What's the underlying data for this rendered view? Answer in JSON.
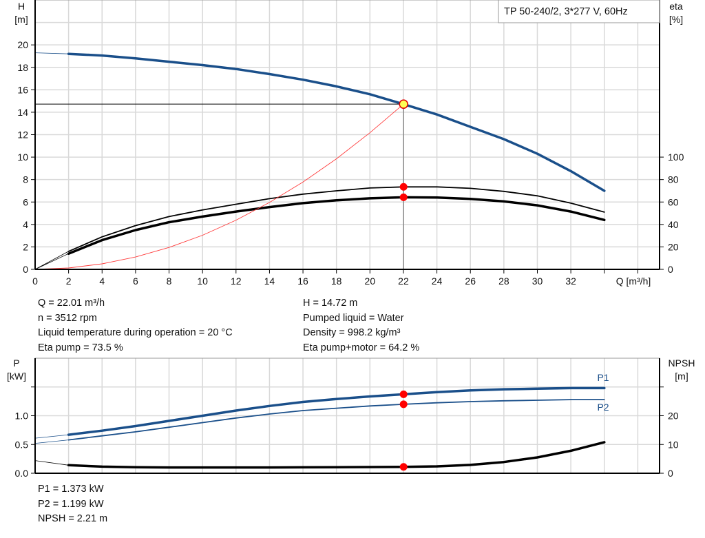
{
  "chart_data": [
    {
      "type": "line",
      "title": "TP 50-240/2, 3*277 V, 60Hz",
      "xlabel": "Q [m³/h]",
      "ylabel_left": "H\n[m]",
      "ylabel_right": "eta\n[%]",
      "xlim": [
        0,
        37.3
      ],
      "ylim_left": [
        0,
        24
      ],
      "ylim_right": [
        0,
        240
      ],
      "x_ticks": [
        0,
        2,
        4,
        6,
        8,
        10,
        12,
        14,
        16,
        18,
        20,
        22,
        24,
        26,
        28,
        30,
        32
      ],
      "y_ticks_left": [
        0,
        2,
        4,
        6,
        8,
        10,
        12,
        14,
        16,
        18,
        20
      ],
      "y_ticks_right": [
        0,
        20,
        40,
        60,
        80,
        100
      ],
      "grid": true,
      "extrapolated_range": [
        0,
        2
      ],
      "series": [
        {
          "id": "H",
          "axis": "left",
          "color": "#1a4f8a",
          "width": 3.5,
          "x": [
            0,
            2,
            4,
            6,
            8,
            10,
            12,
            14,
            16,
            18,
            20,
            22,
            24,
            26,
            28,
            30,
            32,
            34
          ],
          "y": [
            19.3,
            19.2,
            19.05,
            18.8,
            18.5,
            18.2,
            17.85,
            17.4,
            16.9,
            16.3,
            15.6,
            14.72,
            13.8,
            12.7,
            11.6,
            10.3,
            8.75,
            7.0
          ]
        },
        {
          "id": "eta_pump",
          "axis": "right",
          "color": "#000000",
          "width": 1.8,
          "x": [
            0,
            2,
            4,
            6,
            8,
            10,
            12,
            14,
            16,
            18,
            20,
            22,
            24,
            26,
            28,
            30,
            32,
            34
          ],
          "y": [
            0,
            16,
            29,
            39,
            47,
            53,
            58,
            63,
            67,
            70,
            72.5,
            73.5,
            73.5,
            72.2,
            69.5,
            65.5,
            59,
            51
          ]
        },
        {
          "id": "eta_pump_motor",
          "axis": "right",
          "color": "#000000",
          "width": 3.5,
          "x": [
            0,
            2,
            4,
            6,
            8,
            10,
            12,
            14,
            16,
            18,
            20,
            22,
            24,
            26,
            28,
            30,
            32,
            34
          ],
          "y": [
            0,
            14,
            26,
            35,
            42,
            47,
            51.5,
            55.5,
            59,
            61.5,
            63.3,
            64.2,
            64,
            62.8,
            60.5,
            57,
            51.5,
            44
          ]
        },
        {
          "id": "system",
          "axis": "left",
          "color": "#ff3b3b",
          "width": 0.9,
          "x": [
            0,
            2,
            4,
            6,
            8,
            10,
            12,
            14,
            16,
            18,
            20,
            22
          ],
          "y": [
            0,
            0.12,
            0.49,
            1.1,
            1.95,
            3.04,
            4.38,
            5.96,
            7.78,
            9.85,
            12.17,
            14.72
          ]
        }
      ],
      "duty_point": {
        "Q": 22.01,
        "H": 14.72,
        "eta_pump": 73.5,
        "eta_pump_motor": 64.2
      },
      "colors": {
        "duty_fill": "#ffff55",
        "duty_stroke": "#e00000",
        "marker": "#ff0000"
      }
    },
    {
      "type": "line",
      "ylabel_left": "P\n[kW]",
      "ylabel_right": "NPSH\n[m]",
      "xlim": [
        0,
        37.3
      ],
      "ylim_left": [
        0,
        2.0
      ],
      "ylim_right": [
        0,
        40
      ],
      "y_ticks_left": [
        0.0,
        0.5,
        1.0,
        1.5
      ],
      "y_tick_labels_left": [
        "0.0",
        "0.5",
        "1.0",
        ""
      ],
      "y_ticks_right": [
        0,
        10,
        20,
        30
      ],
      "y_tick_labels_right": [
        "0",
        "10",
        "20",
        ""
      ],
      "grid": true,
      "extrapolated_range": [
        0,
        2
      ],
      "series": [
        {
          "id": "P1",
          "name": "P1",
          "axis": "left",
          "color": "#1a4f8a",
          "width": 3.5,
          "x": [
            0,
            2,
            4,
            6,
            8,
            10,
            12,
            14,
            16,
            18,
            20,
            22,
            24,
            26,
            28,
            30,
            32,
            34
          ],
          "y": [
            0.61,
            0.67,
            0.74,
            0.82,
            0.91,
            1.0,
            1.09,
            1.17,
            1.24,
            1.29,
            1.335,
            1.373,
            1.41,
            1.44,
            1.46,
            1.47,
            1.48,
            1.48
          ]
        },
        {
          "id": "P2",
          "name": "P2",
          "axis": "left",
          "color": "#1a4f8a",
          "width": 1.8,
          "x": [
            0,
            2,
            4,
            6,
            8,
            10,
            12,
            14,
            16,
            18,
            20,
            22,
            24,
            26,
            28,
            30,
            32,
            34
          ],
          "y": [
            0.52,
            0.58,
            0.65,
            0.72,
            0.8,
            0.88,
            0.96,
            1.03,
            1.09,
            1.13,
            1.17,
            1.199,
            1.225,
            1.245,
            1.26,
            1.27,
            1.28,
            1.28
          ]
        },
        {
          "id": "NPSH",
          "axis": "right",
          "color": "#000000",
          "width": 3.5,
          "x": [
            0,
            2,
            4,
            6,
            8,
            10,
            12,
            14,
            16,
            18,
            20,
            22,
            24,
            26,
            28,
            30,
            32,
            34
          ],
          "y": [
            4.4,
            2.8,
            2.3,
            2.1,
            2.0,
            2.0,
            2.0,
            2.0,
            2.05,
            2.1,
            2.15,
            2.21,
            2.4,
            2.9,
            3.9,
            5.5,
            7.8,
            10.8
          ]
        }
      ],
      "duty_point": {
        "Q": 22.01,
        "P1": 1.373,
        "P2": 1.199,
        "NPSH": 2.21
      }
    }
  ],
  "info_top_left": [
    "Q = 22.01 m³/h",
    "n = 3512 rpm",
    "Liquid temperature during operation = 20 °C",
    "Eta pump = 73.5 %"
  ],
  "info_top_right": [
    "H = 14.72 m",
    "Pumped liquid = Water",
    "Density = 998.2 kg/m³",
    "Eta pump+motor = 64.2 %"
  ],
  "info_bottom": [
    "P1 = 1.373 kW",
    "P2 = 1.199 kW",
    "NPSH = 2.21 m"
  ]
}
